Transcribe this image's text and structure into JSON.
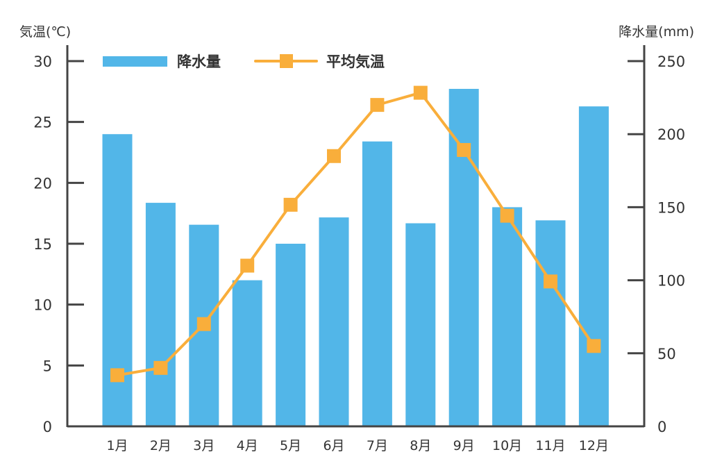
{
  "chart_data": {
    "type": "bar+line",
    "categories": [
      "1月",
      "2月",
      "3月",
      "4月",
      "5月",
      "6月",
      "7月",
      "8月",
      "9月",
      "10月",
      "11月",
      "12月"
    ],
    "series": [
      {
        "name": "降水量",
        "type": "bar",
        "axis": "right",
        "color": "#52b6e8",
        "values": [
          200,
          153,
          138,
          100,
          125,
          143,
          195,
          139,
          231,
          150,
          141,
          219
        ]
      },
      {
        "name": "平均気温",
        "type": "line",
        "axis": "left",
        "color": "#f9ae3b",
        "marker": "square",
        "values": [
          4.2,
          4.8,
          8.4,
          13.2,
          18.2,
          22.2,
          26.4,
          27.4,
          22.7,
          17.3,
          11.9,
          6.6
        ]
      }
    ],
    "ylabel_left": "気温(℃)",
    "ylabel_right": "降水量(mm)",
    "ylim_left": [
      0,
      30
    ],
    "ylim_right": [
      0,
      250
    ],
    "yticks_left": [
      "0",
      "5",
      "10",
      "15",
      "20",
      "25",
      "30"
    ],
    "yticks_right": [
      "0",
      "50",
      "100",
      "150",
      "200",
      "250"
    ],
    "legend_position": "top-left",
    "grid": false
  }
}
